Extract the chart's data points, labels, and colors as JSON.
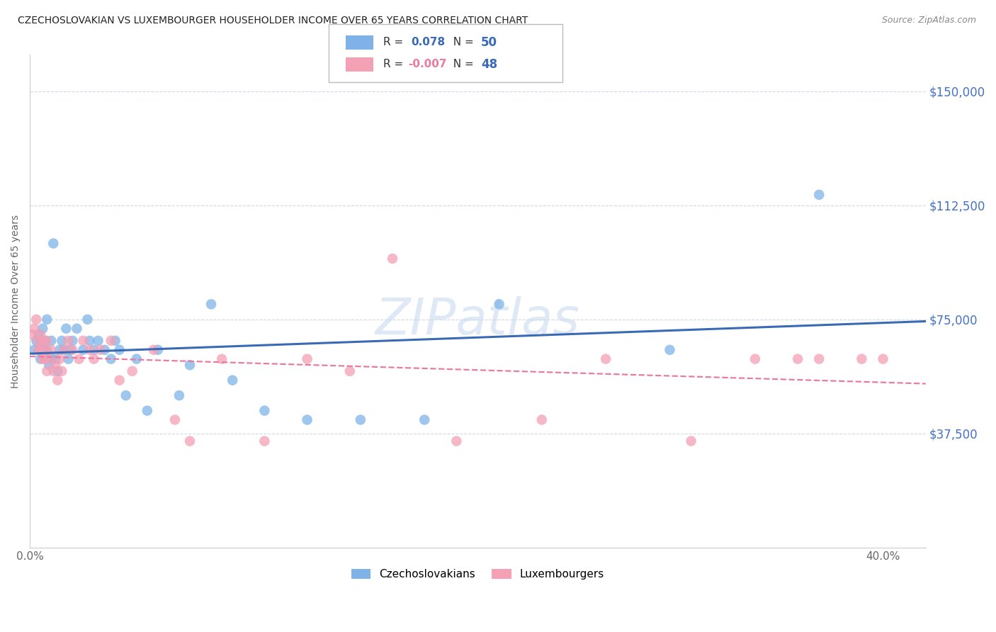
{
  "title": "CZECHOSLOVAKIAN VS LUXEMBOURGER HOUSEHOLDER INCOME OVER 65 YEARS CORRELATION CHART",
  "source": "Source: ZipAtlas.com",
  "ylabel": "Householder Income Over 65 years",
  "y_ticks": [
    0,
    37500,
    75000,
    112500,
    150000
  ],
  "y_tick_labels": [
    "",
    "$37,500",
    "$75,000",
    "$112,500",
    "$150,000"
  ],
  "ylim": [
    0,
    162000
  ],
  "xlim": [
    0.0,
    0.42
  ],
  "legend_r_czech": "0.078",
  "legend_n_czech": "50",
  "legend_r_lux": "-0.007",
  "legend_n_lux": "48",
  "czech_color": "#7fb3e8",
  "lux_color": "#f4a0b5",
  "line_czech_color": "#3a6ab5",
  "line_lux_color": "#e87ca0",
  "y_label_color": "#4472c4",
  "background_color": "#ffffff",
  "grid_color": "#d0d8e8",
  "czech_x": [
    0.002,
    0.003,
    0.004,
    0.004,
    0.005,
    0.005,
    0.006,
    0.006,
    0.007,
    0.007,
    0.008,
    0.008,
    0.009,
    0.01,
    0.01,
    0.011,
    0.012,
    0.013,
    0.014,
    0.015,
    0.016,
    0.017,
    0.018,
    0.019,
    0.02,
    0.022,
    0.025,
    0.027,
    0.028,
    0.03,
    0.032,
    0.035,
    0.038,
    0.04,
    0.042,
    0.045,
    0.05,
    0.055,
    0.06,
    0.07,
    0.075,
    0.085,
    0.095,
    0.11,
    0.13,
    0.155,
    0.185,
    0.22,
    0.3,
    0.37
  ],
  "czech_y": [
    65000,
    68000,
    70000,
    65000,
    62000,
    68000,
    72000,
    65000,
    63000,
    68000,
    75000,
    65000,
    60000,
    62000,
    68000,
    100000,
    62000,
    58000,
    65000,
    68000,
    65000,
    72000,
    62000,
    65000,
    68000,
    72000,
    65000,
    75000,
    68000,
    65000,
    68000,
    65000,
    62000,
    68000,
    65000,
    50000,
    62000,
    45000,
    65000,
    50000,
    60000,
    80000,
    55000,
    45000,
    42000,
    42000,
    42000,
    80000,
    65000,
    116000
  ],
  "lux_x": [
    0.001,
    0.002,
    0.003,
    0.004,
    0.004,
    0.005,
    0.005,
    0.006,
    0.006,
    0.007,
    0.007,
    0.008,
    0.008,
    0.009,
    0.01,
    0.011,
    0.012,
    0.013,
    0.014,
    0.015,
    0.016,
    0.018,
    0.02,
    0.023,
    0.025,
    0.028,
    0.03,
    0.033,
    0.038,
    0.042,
    0.048,
    0.058,
    0.068,
    0.075,
    0.09,
    0.11,
    0.13,
    0.15,
    0.17,
    0.2,
    0.24,
    0.27,
    0.31,
    0.34,
    0.36,
    0.37,
    0.39,
    0.4
  ],
  "lux_y": [
    70000,
    72000,
    75000,
    68000,
    65000,
    70000,
    65000,
    68000,
    62000,
    65000,
    62000,
    68000,
    58000,
    62000,
    65000,
    58000,
    60000,
    55000,
    62000,
    58000,
    65000,
    68000,
    65000,
    62000,
    68000,
    65000,
    62000,
    65000,
    68000,
    55000,
    58000,
    65000,
    42000,
    35000,
    62000,
    35000,
    62000,
    58000,
    95000,
    35000,
    42000,
    62000,
    35000,
    62000,
    62000,
    62000,
    62000,
    62000
  ]
}
